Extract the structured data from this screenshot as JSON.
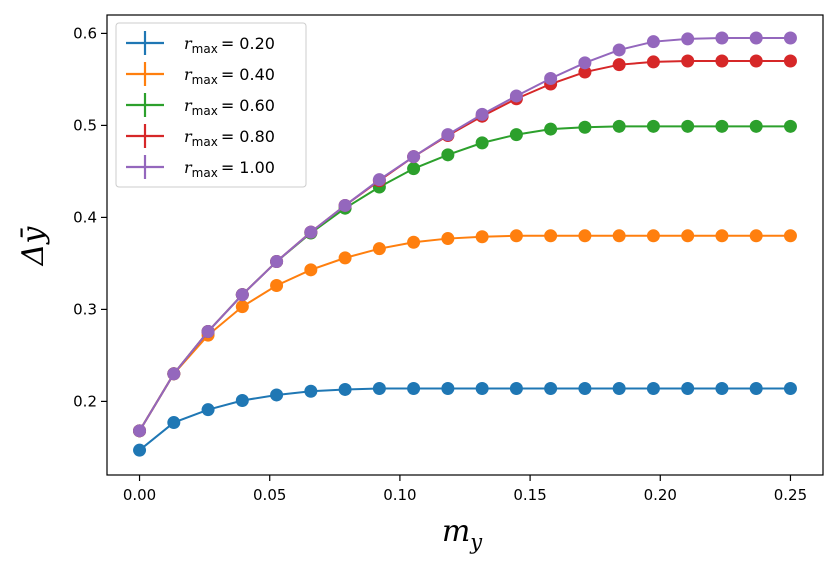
{
  "chart_data": {
    "type": "line",
    "title": "",
    "xlabel_main": "m",
    "xlabel_sub": "y",
    "ylabel": "Δȳ",
    "xlim": [
      -0.0125,
      0.2625
    ],
    "ylim": [
      0.12,
      0.62
    ],
    "xticks": [
      0.0,
      0.05,
      0.1,
      0.15,
      0.2,
      0.25
    ],
    "xtick_labels": [
      "0.00",
      "0.05",
      "0.10",
      "0.15",
      "0.20",
      "0.25"
    ],
    "yticks": [
      0.2,
      0.3,
      0.4,
      0.5,
      0.6
    ],
    "ytick_labels": [
      "0.2",
      "0.3",
      "0.4",
      "0.5",
      "0.6"
    ],
    "grid": false,
    "legend_position": "top-left",
    "x": [
      0.0,
      0.01316,
      0.02632,
      0.03947,
      0.05263,
      0.06579,
      0.07895,
      0.09211,
      0.10526,
      0.11842,
      0.13158,
      0.14474,
      0.15789,
      0.17105,
      0.18421,
      0.19737,
      0.21053,
      0.22368,
      0.23684,
      0.25
    ],
    "series": [
      {
        "name": "r_max = 0.20",
        "legend_sub": "max",
        "legend_value": "= 0.20",
        "color": "#1f77b4",
        "values": [
          0.147,
          0.177,
          0.191,
          0.201,
          0.207,
          0.211,
          0.213,
          0.214,
          0.214,
          0.214,
          0.214,
          0.214,
          0.214,
          0.214,
          0.214,
          0.214,
          0.214,
          0.214,
          0.214,
          0.214
        ]
      },
      {
        "name": "r_max = 0.40",
        "legend_sub": "max",
        "legend_value": "= 0.40",
        "color": "#ff7f0e",
        "values": [
          0.168,
          0.23,
          0.272,
          0.303,
          0.326,
          0.343,
          0.356,
          0.366,
          0.373,
          0.377,
          0.379,
          0.38,
          0.38,
          0.38,
          0.38,
          0.38,
          0.38,
          0.38,
          0.38,
          0.38
        ]
      },
      {
        "name": "r_max = 0.60",
        "legend_sub": "max",
        "legend_value": "= 0.60",
        "color": "#2ca02c",
        "values": [
          0.168,
          0.23,
          0.276,
          0.316,
          0.352,
          0.383,
          0.41,
          0.433,
          0.453,
          0.468,
          0.481,
          0.49,
          0.496,
          0.498,
          0.499,
          0.499,
          0.499,
          0.499,
          0.499,
          0.499
        ]
      },
      {
        "name": "r_max = 0.80",
        "legend_sub": "max",
        "legend_value": "= 0.80",
        "color": "#d62728",
        "values": [
          0.168,
          0.23,
          0.276,
          0.316,
          0.352,
          0.384,
          0.413,
          0.44,
          0.466,
          0.489,
          0.51,
          0.529,
          0.545,
          0.558,
          0.566,
          0.569,
          0.57,
          0.57,
          0.57,
          0.57
        ]
      },
      {
        "name": "r_max = 1.00",
        "legend_sub": "max",
        "legend_value": "= 1.00",
        "color": "#9467bd",
        "values": [
          0.168,
          0.23,
          0.276,
          0.316,
          0.352,
          0.384,
          0.413,
          0.441,
          0.466,
          0.49,
          0.512,
          0.532,
          0.551,
          0.568,
          0.582,
          0.591,
          0.594,
          0.595,
          0.595,
          0.595
        ]
      }
    ]
  }
}
